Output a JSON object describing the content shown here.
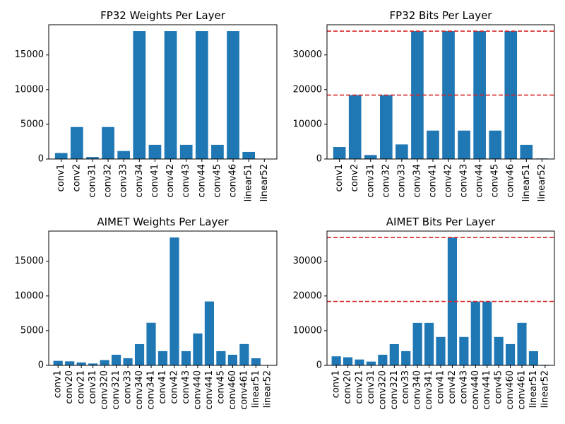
{
  "figure": {
    "background": "#ffffff"
  },
  "chart_data": [
    {
      "type": "bar",
      "title": "FP32 Weights Per Layer",
      "xlabel": "",
      "ylabel": "",
      "categories": [
        "conv1",
        "conv2",
        "conv31",
        "conv32",
        "conv33",
        "conv34",
        "conv41",
        "conv42",
        "conv43",
        "conv44",
        "conv45",
        "conv46",
        "linear51",
        "linear52"
      ],
      "values": [
        864,
        4608,
        288,
        4608,
        1152,
        18432,
        2048,
        18432,
        2048,
        18432,
        2048,
        18432,
        1024,
        40
      ],
      "ylim": [
        0,
        19353
      ],
      "yticks": [
        0,
        5000,
        10000,
        15000
      ],
      "bar_color": "#1f77b4",
      "hlines": [],
      "grid": false
    },
    {
      "type": "bar",
      "title": "FP32 Bits Per Layer",
      "xlabel": "",
      "ylabel": "",
      "categories": [
        "conv1",
        "conv2",
        "conv31",
        "conv32",
        "conv33",
        "conv34",
        "conv41",
        "conv42",
        "conv43",
        "conv44",
        "conv45",
        "conv46",
        "linear51",
        "linear52"
      ],
      "values": [
        3456,
        18432,
        1152,
        18432,
        4200,
        36864,
        8192,
        36864,
        8192,
        36864,
        8192,
        36864,
        4096,
        160
      ],
      "ylim": [
        0,
        38707
      ],
      "yticks": [
        0,
        10000,
        20000,
        30000
      ],
      "bar_color": "#1f77b4",
      "hlines": [
        36864,
        18432
      ],
      "hline_color": "#d62728",
      "grid": false
    },
    {
      "type": "bar",
      "title": "AIMET Weights Per Layer",
      "xlabel": "",
      "ylabel": "",
      "categories": [
        "conv1",
        "conv20",
        "conv21",
        "conv31",
        "conv320",
        "conv321",
        "conv33",
        "conv340",
        "conv341",
        "conv41",
        "conv42",
        "conv43",
        "conv440",
        "conv441",
        "conv45",
        "conv460",
        "conv461",
        "linear51",
        "linear52"
      ],
      "values": [
        650,
        580,
        420,
        270,
        760,
        1530,
        1030,
        3060,
        6140,
        2050,
        18430,
        2050,
        4600,
        9210,
        2050,
        1530,
        3070,
        1020,
        40
      ],
      "ylim": [
        0,
        19353
      ],
      "yticks": [
        0,
        5000,
        10000,
        15000
      ],
      "bar_color": "#1f77b4",
      "hlines": [],
      "grid": false
    },
    {
      "type": "bar",
      "title": "AIMET Bits Per Layer",
      "xlabel": "",
      "ylabel": "",
      "categories": [
        "conv1",
        "conv20",
        "conv21",
        "conv31",
        "conv320",
        "conv321",
        "conv33",
        "conv340",
        "conv341",
        "conv41",
        "conv42",
        "conv43",
        "conv440",
        "conv441",
        "conv45",
        "conv460",
        "conv461",
        "linear51",
        "linear52"
      ],
      "values": [
        2600,
        2330,
        1690,
        1090,
        3060,
        6120,
        4100,
        12250,
        12250,
        8190,
        36860,
        8190,
        18400,
        18400,
        8190,
        6130,
        12260,
        4090,
        160
      ],
      "ylim": [
        0,
        38707
      ],
      "yticks": [
        0,
        10000,
        20000,
        30000
      ],
      "bar_color": "#1f77b4",
      "hlines": [
        36864,
        18432
      ],
      "hline_color": "#d62728",
      "grid": false
    }
  ]
}
